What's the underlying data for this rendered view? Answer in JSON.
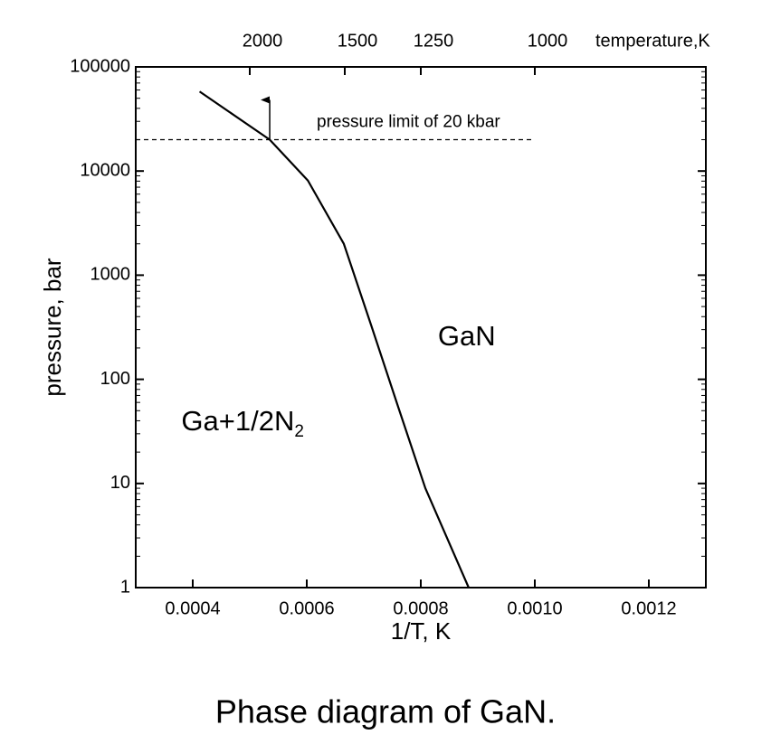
{
  "chart_data": {
    "type": "line",
    "xlabel": "1/T, K",
    "ylabel": "pressure, bar",
    "x2label": "temperature,K",
    "caption": "Phase diagram of GaN.",
    "xlim": [
      0.0003,
      0.0013
    ],
    "xticks": [
      0.0004,
      0.0006,
      0.0008,
      {
        "value": 0.001,
        "label": "0.0010"
      },
      0.0012
    ],
    "x2ticks": [
      2000,
      1500,
      1250,
      1000
    ],
    "ylim": [
      1,
      100000
    ],
    "yticks": [
      1,
      10,
      100,
      1000,
      10000,
      100000
    ],
    "ylog": true,
    "series": [
      {
        "name": null,
        "color": "#000000",
        "x": [
          0.000412,
          0.000535,
          0.000602,
          0.000665,
          0.000713,
          0.00076,
          0.000808,
          0.000884
        ],
        "values": [
          58000,
          20000,
          8100,
          2000,
          330,
          55,
          9,
          1
        ]
      }
    ],
    "limit": {
      "value": 20000,
      "x_end": 0.001,
      "label": "pressure limit of 20 kbar"
    },
    "annotations": [
      {
        "text": "GaN",
        "x": 0.00083,
        "y": 250
      },
      {
        "text": "Ga+1/2N",
        "subscript": "2",
        "x": 0.00038,
        "y": 38
      }
    ]
  }
}
